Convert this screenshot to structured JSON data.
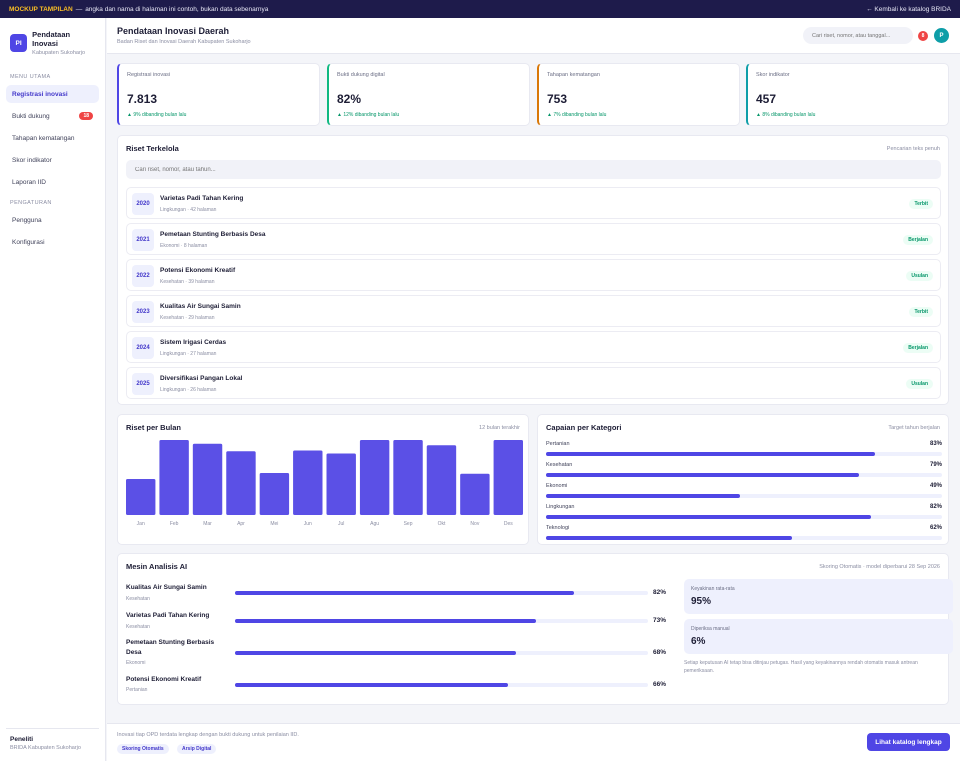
{
  "topbar": {
    "tag": "MOCKUP TAMPILAN",
    "separator": "—",
    "notice": "angka dan nama di halaman ini contoh, bukan data sebenarnya",
    "back_link": "← Kembali ke katalog BRIDA"
  },
  "brand": {
    "logo": "PI",
    "title": "Pendataan Inovasi",
    "subtitle": "Kabupaten Sukoharjo"
  },
  "sidebar": {
    "section_main": "MENU UTAMA",
    "items": [
      {
        "label": "Registrasi inovasi",
        "badge": ""
      },
      {
        "label": "Bukti dukung",
        "badge": "18"
      },
      {
        "label": "Tahapan kematangan",
        "badge": ""
      },
      {
        "label": "Skor indikator",
        "badge": ""
      },
      {
        "label": "Laporan IID",
        "badge": ""
      }
    ],
    "section_settings": "PENGATURAN",
    "settings": [
      {
        "label": "Pengguna"
      },
      {
        "label": "Konfigurasi"
      }
    ],
    "footer": {
      "role": "Peneliti",
      "org": "BRIDA Kabupaten Sukoharjo"
    }
  },
  "header": {
    "title": "Pendataan Inovasi Daerah",
    "subtitle": "Badan Riset dan Inovasi Daerah Kabupaten Sukoharjo",
    "search_placeholder": "Cari riset, nomor, atau tanggal...",
    "notif_count": "8",
    "avatar": "P"
  },
  "stats": [
    {
      "label": "Registrasi inovasi",
      "value": "7.813",
      "change": "▲ 9% dibanding bulan lalu",
      "accent": "#4f46e5"
    },
    {
      "label": "Bukti dukung digital",
      "value": "82%",
      "change": "▲ 12% dibanding bulan lalu",
      "accent": "#10b981"
    },
    {
      "label": "Tahapan kematangan",
      "value": "753",
      "change": "▲ 7% dibanding bulan lalu",
      "accent": "#d97706"
    },
    {
      "label": "Skor indikator",
      "value": "457",
      "change": "▲ 8% dibanding bulan lalu",
      "accent": "#0e9ea8"
    }
  ],
  "riset": {
    "title": "Riset Terkelola",
    "hint": "Pencarian teks penuh",
    "search_placeholder": "Cari riset, nomor, atau tahun...",
    "rows": [
      {
        "year": "2020",
        "title": "Varietas Padi Tahan Kering",
        "meta": "Lingkungan · 42 halaman",
        "status": "Terbit"
      },
      {
        "year": "2021",
        "title": "Pemetaan Stunting Berbasis Desa",
        "meta": "Ekonomi · 8 halaman",
        "status": "Berjalan"
      },
      {
        "year": "2022",
        "title": "Potensi Ekonomi Kreatif",
        "meta": "Kesehatan · 39 halaman",
        "status": "Usulan"
      },
      {
        "year": "2023",
        "title": "Kualitas Air Sungai Samin",
        "meta": "Kesehatan · 29 halaman",
        "status": "Terbit"
      },
      {
        "year": "2024",
        "title": "Sistem Irigasi Cerdas",
        "meta": "Lingkungan · 27 halaman",
        "status": "Berjalan"
      },
      {
        "year": "2025",
        "title": "Diversifikasi Pangan Lokal",
        "meta": "Lingkungan · 26 halaman",
        "status": "Usulan"
      }
    ]
  },
  "monthly": {
    "title": "Riset per Bulan",
    "hint": "12 bulan terakhir"
  },
  "chart_data": {
    "type": "bar",
    "categories": [
      "Jan",
      "Feb",
      "Mar",
      "Apr",
      "Mei",
      "Jun",
      "Jul",
      "Agu",
      "Sep",
      "Okt",
      "Nov",
      "Des"
    ],
    "values": [
      48,
      100,
      95,
      85,
      56,
      86,
      82,
      100,
      100,
      93,
      55,
      100
    ],
    "color": "#5b50e6"
  },
  "categories_panel": {
    "title": "Capaian per Kategori",
    "hint": "Target tahun berjalan",
    "items": [
      {
        "name": "Pertanian",
        "pct_label": "83%",
        "pct": 83
      },
      {
        "name": "Kesehatan",
        "pct_label": "79%",
        "pct": 79
      },
      {
        "name": "Ekonomi",
        "pct_label": "49%",
        "pct": 49
      },
      {
        "name": "Lingkungan",
        "pct_label": "82%",
        "pct": 82
      },
      {
        "name": "Teknologi",
        "pct_label": "62%",
        "pct": 62
      }
    ]
  },
  "ai": {
    "title": "Mesin Analisis AI",
    "hint": "Skoring Otomatis · model diperbarui 28 Sep 2026",
    "items": [
      {
        "name": "Kualitas Air Sungai Samin",
        "category": "Kesehatan",
        "pct_label": "82%",
        "pct": 82
      },
      {
        "name": "Varietas Padi Tahan Kering",
        "category": "Kesehatan",
        "pct_label": "73%",
        "pct": 73
      },
      {
        "name": "Pemetaan Stunting Berbasis Desa",
        "category": "Ekonomi",
        "pct_label": "68%",
        "pct": 68
      },
      {
        "name": "Potensi Ekonomi Kreatif",
        "category": "Pertanian",
        "pct_label": "66%",
        "pct": 66
      }
    ],
    "kpi1": {
      "label": "Keyakinan rata-rata",
      "value": "95%"
    },
    "kpi2": {
      "label": "Diperiksa manual",
      "value": "6%"
    },
    "note": "Setiap keputusan AI tetap bisa ditinjau petugas. Hasil yang keyakinannya rendah otomatis masuk antrean pemeriksaan."
  },
  "footer": {
    "text": "Inovasi tiap OPD terdata lengkap dengan bukti dukung untuk penilaian IID.",
    "chip1": "Skoring Otomatis",
    "chip2": "Arsip Digital",
    "cta": "Lihat katalog lengkap"
  }
}
